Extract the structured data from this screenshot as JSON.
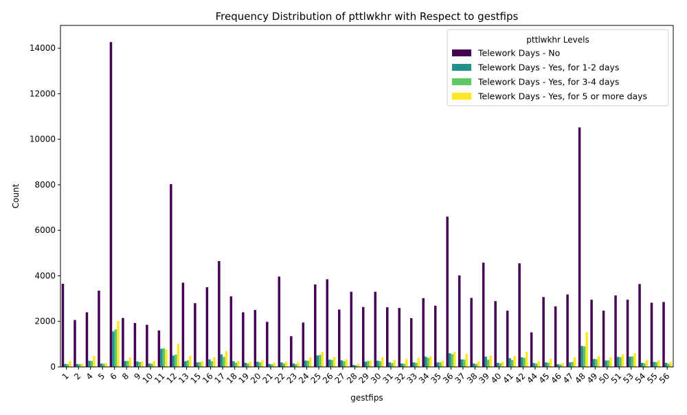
{
  "chart_data": {
    "type": "bar",
    "title": "Frequency Distribution of pttlwkhr with Respect to gestfips",
    "xlabel": "gestfips",
    "ylabel": "Count",
    "ylim": [
      0,
      15000
    ],
    "yticks": [
      0,
      2000,
      4000,
      6000,
      8000,
      10000,
      12000,
      14000
    ],
    "legend": {
      "title": "pttlwkhr Levels",
      "placement": "top-right"
    },
    "categories": [
      "1",
      "2",
      "4",
      "5",
      "6",
      "8",
      "9",
      "10",
      "11",
      "12",
      "13",
      "15",
      "16",
      "17",
      "18",
      "19",
      "20",
      "21",
      "22",
      "23",
      "24",
      "25",
      "26",
      "27",
      "28",
      "29",
      "30",
      "31",
      "32",
      "33",
      "34",
      "35",
      "36",
      "37",
      "38",
      "39",
      "40",
      "41",
      "42",
      "44",
      "45",
      "46",
      "47",
      "48",
      "49",
      "50",
      "51",
      "53",
      "54",
      "55",
      "56"
    ],
    "series": [
      {
        "name": "Telework Days - No",
        "color": "#440154",
        "values": [
          3650,
          2060,
          2400,
          3350,
          14270,
          2150,
          1930,
          1850,
          1600,
          8030,
          3700,
          2800,
          3500,
          4650,
          3100,
          2400,
          2500,
          1980,
          3970,
          1350,
          1950,
          3620,
          3850,
          2520,
          3300,
          2630,
          3300,
          2620,
          2590,
          2140,
          3020,
          2690,
          6600,
          4020,
          3030,
          4580,
          2890,
          2470,
          4550,
          1520,
          3070,
          2660,
          3180,
          10520,
          2950,
          2470,
          3140,
          2950,
          3640,
          2820,
          2850
        ]
      },
      {
        "name": "Telework Days - Yes, for 1-2 days",
        "color": "#21918c",
        "values": [
          130,
          130,
          270,
          150,
          1560,
          260,
          240,
          150,
          800,
          500,
          250,
          200,
          330,
          550,
          250,
          180,
          230,
          130,
          200,
          150,
          280,
          500,
          320,
          290,
          90,
          230,
          270,
          200,
          150,
          200,
          450,
          200,
          600,
          330,
          150,
          450,
          180,
          380,
          420,
          170,
          200,
          120,
          200,
          920,
          350,
          280,
          440,
          450,
          180,
          220,
          180
        ]
      },
      {
        "name": "Telework Days - Yes, for 3-4 days",
        "color": "#5ec962",
        "values": [
          120,
          120,
          260,
          140,
          1650,
          260,
          210,
          140,
          820,
          540,
          290,
          210,
          250,
          440,
          180,
          150,
          200,
          110,
          150,
          120,
          270,
          530,
          310,
          250,
          70,
          260,
          250,
          170,
          140,
          180,
          400,
          200,
          560,
          320,
          130,
          320,
          160,
          300,
          400,
          150,
          180,
          110,
          220,
          900,
          340,
          290,
          430,
          460,
          160,
          210,
          140
        ]
      },
      {
        "name": "Telework Days - Yes, for 5 or more days",
        "color": "#fde725",
        "values": [
          260,
          140,
          480,
          170,
          2010,
          410,
          250,
          270,
          760,
          1020,
          480,
          260,
          430,
          700,
          270,
          230,
          290,
          190,
          230,
          210,
          420,
          660,
          440,
          330,
          140,
          280,
          430,
          300,
          350,
          400,
          460,
          280,
          660,
          580,
          240,
          500,
          230,
          480,
          670,
          260,
          360,
          170,
          430,
          1520,
          480,
          420,
          560,
          600,
          310,
          300,
          220
        ]
      }
    ]
  }
}
